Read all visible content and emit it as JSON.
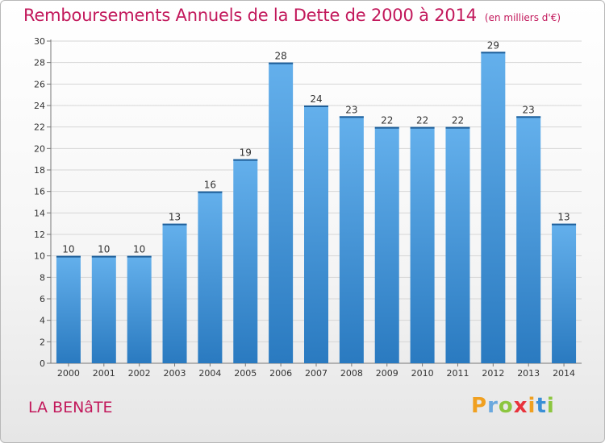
{
  "header": {
    "title": "Remboursements Annuels de la Dette de 2000 à 2014",
    "subtitle": "(en milliers d'€)"
  },
  "footer": {
    "commune": "LA BENâTE",
    "logo_letters": [
      "P",
      "r",
      "o",
      "x",
      "i",
      "t",
      "i"
    ],
    "logo_colors": [
      "#f0a020",
      "#6aa8de",
      "#8cc63f",
      "#e8333c",
      "#f0a020",
      "#3a8fd6",
      "#8cc63f"
    ]
  },
  "colors": {
    "bar_light": "#64b0ec",
    "bar_dark": "#2a7ac0",
    "accent": "#c2185b"
  },
  "chart_data": {
    "type": "bar",
    "categories": [
      "2000",
      "2001",
      "2002",
      "2003",
      "2004",
      "2005",
      "2006",
      "2007",
      "2008",
      "2009",
      "2010",
      "2011",
      "2012",
      "2013",
      "2014"
    ],
    "values": [
      10,
      10,
      10,
      13,
      16,
      19,
      28,
      24,
      23,
      22,
      22,
      22,
      29,
      23,
      13
    ],
    "ylim": [
      0,
      30
    ],
    "yticks": [
      0,
      2,
      4,
      6,
      8,
      10,
      12,
      14,
      16,
      18,
      20,
      22,
      24,
      26,
      28,
      30
    ],
    "grid": true,
    "data_labels": true
  }
}
